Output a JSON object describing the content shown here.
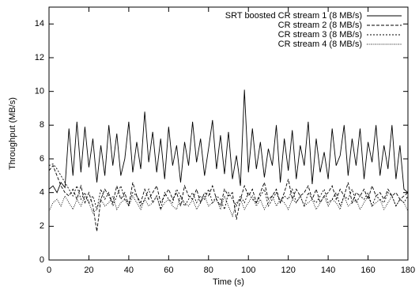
{
  "chart_data": {
    "type": "line",
    "xlabel": "Time (s)",
    "ylabel": "Throughput (MB/s)",
    "xlim": [
      0,
      180
    ],
    "ylim": [
      0,
      15
    ],
    "xticks": [
      0,
      20,
      40,
      60,
      80,
      100,
      120,
      140,
      160,
      180
    ],
    "yticks": [
      0,
      2,
      4,
      6,
      8,
      10,
      12,
      14
    ],
    "grid": false,
    "legend": "upper right",
    "x": [
      0,
      2,
      4,
      6,
      8,
      10,
      12,
      14,
      16,
      18,
      20,
      22,
      24,
      26,
      28,
      30,
      32,
      34,
      36,
      38,
      40,
      42,
      44,
      46,
      48,
      50,
      52,
      54,
      56,
      58,
      60,
      62,
      64,
      66,
      68,
      70,
      72,
      74,
      76,
      78,
      80,
      82,
      84,
      86,
      88,
      90,
      92,
      94,
      96,
      98,
      100,
      102,
      104,
      106,
      108,
      110,
      112,
      114,
      116,
      118,
      120,
      122,
      124,
      126,
      128,
      130,
      132,
      134,
      136,
      138,
      140,
      142,
      144,
      146,
      148,
      150,
      152,
      154,
      156,
      158,
      160,
      162,
      164,
      166,
      168,
      170,
      172,
      174,
      176,
      178,
      180
    ],
    "series": [
      {
        "name": "SRT boosted CR stream 1 (8 MB/s)",
        "color": "#000000",
        "style": "solid",
        "values": [
          4.2,
          4.4,
          4.0,
          4.6,
          4.3,
          7.8,
          5.0,
          8.2,
          5.2,
          7.9,
          5.5,
          7.2,
          4.6,
          6.8,
          5.0,
          8.0,
          5.6,
          7.5,
          5.0,
          6.0,
          8.2,
          5.2,
          7.0,
          5.4,
          8.8,
          5.8,
          7.6,
          5.2,
          7.2,
          4.8,
          7.9,
          5.6,
          6.8,
          4.6,
          7.0,
          5.6,
          8.2,
          5.8,
          7.2,
          5.0,
          6.6,
          8.3,
          5.4,
          7.4,
          5.1,
          7.6,
          4.8,
          6.2,
          4.4,
          10.1,
          5.2,
          7.8,
          5.4,
          7.0,
          4.9,
          6.6,
          5.6,
          8.0,
          4.6,
          7.2,
          5.3,
          7.7,
          4.8,
          6.8,
          5.6,
          8.2,
          4.5,
          7.2,
          5.2,
          6.4,
          4.8,
          7.8,
          5.6,
          6.2,
          8.0,
          5.0,
          7.2,
          5.6,
          7.8,
          4.8,
          7.0,
          5.8,
          8.0,
          5.0,
          6.8,
          5.4,
          8.0,
          4.8,
          6.8,
          4.2,
          4.0
        ]
      },
      {
        "name": "CR stream 2 (8 MB/s)",
        "color": "#000000",
        "style": "dashed",
        "values": [
          5.3,
          5.6,
          5.0,
          4.4,
          4.0,
          3.8,
          4.2,
          3.6,
          4.4,
          3.4,
          4.0,
          3.2,
          1.7,
          3.6,
          4.2,
          3.8,
          3.4,
          4.4,
          3.6,
          4.0,
          3.2,
          4.6,
          3.8,
          3.4,
          4.2,
          3.6,
          4.0,
          4.4,
          3.4,
          3.8,
          4.2,
          3.6,
          4.0,
          3.2,
          4.4,
          3.8,
          3.6,
          4.2,
          3.4,
          4.0,
          3.8,
          4.4,
          3.6,
          3.2,
          4.2,
          3.8,
          4.0,
          2.4,
          3.6,
          4.4,
          3.8,
          4.2,
          3.4,
          4.0,
          4.6,
          3.6,
          3.8,
          4.2,
          3.4,
          4.0,
          4.8,
          3.6,
          4.2,
          3.8,
          4.0,
          4.4,
          3.6,
          4.2,
          3.4,
          3.8,
          4.0,
          4.4,
          3.6,
          4.2,
          3.8,
          4.6,
          3.4,
          4.0,
          3.8,
          4.2,
          3.6,
          4.4,
          3.8,
          4.0,
          3.6,
          4.2,
          3.8,
          4.0,
          3.6,
          3.8,
          4.0
        ]
      },
      {
        "name": "CR stream 3 (8 MB/s)",
        "color": "#000000",
        "style": "dotted",
        "values": [
          5.6,
          5.7,
          5.4,
          5.0,
          4.6,
          4.2,
          3.8,
          4.4,
          3.6,
          4.0,
          3.4,
          3.8,
          3.0,
          4.2,
          3.6,
          4.0,
          3.2,
          3.8,
          4.4,
          3.6,
          3.4,
          4.0,
          3.8,
          3.2,
          3.6,
          4.2,
          3.4,
          3.8,
          3.0,
          4.0,
          3.6,
          3.4,
          4.2,
          3.8,
          3.2,
          3.6,
          4.0,
          3.4,
          3.8,
          3.6,
          4.2,
          3.4,
          3.8,
          3.6,
          3.0,
          4.0,
          3.6,
          3.2,
          3.8,
          3.4,
          4.0,
          3.6,
          3.4,
          3.8,
          4.2,
          3.2,
          3.6,
          4.0,
          3.4,
          3.8,
          3.6,
          4.2,
          3.4,
          3.8,
          3.2,
          4.0,
          3.6,
          3.4,
          3.8,
          4.2,
          3.4,
          3.6,
          4.0,
          3.2,
          3.8,
          3.6,
          4.2,
          3.4,
          3.8,
          3.6,
          4.0,
          3.2,
          3.8,
          3.6,
          3.4,
          4.0,
          3.8,
          3.2,
          3.6,
          3.4,
          3.8
        ]
      },
      {
        "name": "CR stream 4 (8 MB/s)",
        "color": "#000000",
        "style": "fine-dotted",
        "values": [
          2.9,
          3.4,
          3.6,
          3.2,
          3.8,
          3.4,
          3.0,
          3.6,
          3.2,
          3.8,
          3.4,
          2.8,
          3.0,
          3.6,
          3.2,
          3.4,
          3.8,
          3.0,
          3.4,
          3.6,
          3.2,
          3.8,
          3.4,
          3.0,
          3.6,
          3.2,
          3.4,
          3.8,
          3.0,
          3.4,
          3.6,
          3.2,
          3.0,
          3.8,
          3.4,
          3.2,
          3.6,
          3.0,
          3.4,
          3.8,
          3.2,
          3.4,
          3.6,
          3.0,
          3.8,
          3.2,
          2.6,
          3.4,
          3.6,
          3.0,
          3.4,
          3.8,
          3.2,
          3.6,
          3.0,
          3.4,
          3.8,
          3.2,
          3.6,
          3.4,
          3.0,
          3.6,
          3.4,
          3.8,
          3.2,
          3.4,
          3.6,
          3.0,
          3.4,
          3.8,
          3.2,
          3.6,
          3.4,
          3.0,
          3.8,
          3.2,
          3.4,
          3.6,
          3.0,
          3.4,
          3.8,
          3.2,
          3.4,
          3.6,
          3.0,
          3.4,
          3.8,
          3.2,
          3.6,
          3.4,
          2.9
        ]
      }
    ]
  }
}
